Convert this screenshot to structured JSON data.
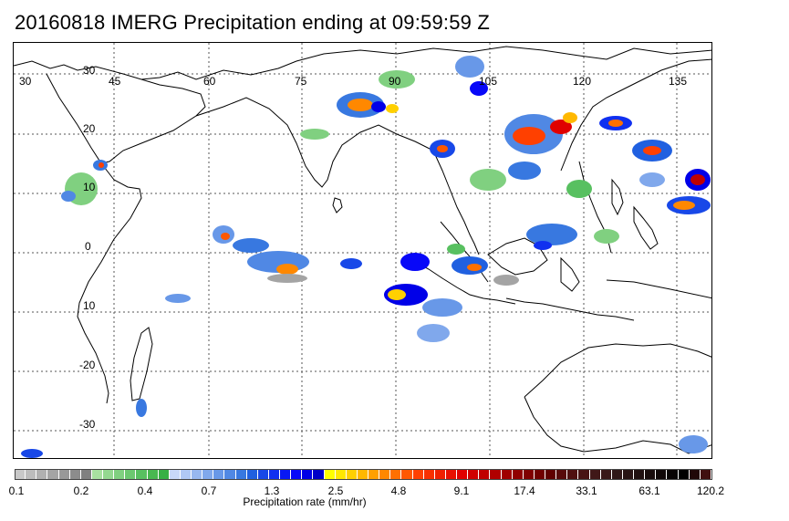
{
  "title": "20160818 IMERG Precipitation ending at 09:59:59 Z",
  "map": {
    "longitude_labels": [
      "30",
      "45",
      "60",
      "75",
      "90",
      "105",
      "120",
      "135"
    ],
    "latitude_labels": [
      "30",
      "20",
      "10",
      "0",
      "10",
      "-20",
      "-30"
    ]
  },
  "colorbar": {
    "title": "Precipitation rate (mm/hr)",
    "tick_labels": [
      "0.1",
      "0.2",
      "0.4",
      "0.7",
      "1.3",
      "2.5",
      "4.8",
      "9.1",
      "17.4",
      "33.1",
      "63.1",
      "120.2"
    ],
    "colors": [
      "#c8c8c8",
      "#bcbcbc",
      "#b0b0b0",
      "#a4a4a4",
      "#989898",
      "#8c8c8c",
      "#808080",
      "#a8e0a0",
      "#94d890",
      "#80d080",
      "#6cc870",
      "#58c060",
      "#48b850",
      "#38b044",
      "#c8d8f8",
      "#b0c8f4",
      "#98b8f0",
      "#80a8ec",
      "#6898e8",
      "#5088e4",
      "#3878e0",
      "#2060e0",
      "#1848e8",
      "#1030f0",
      "#0818f4",
      "#0808f8",
      "#0000e8",
      "#0000c8",
      "#ffff00",
      "#ffe800",
      "#ffd000",
      "#ffb800",
      "#ffa000",
      "#ff8800",
      "#ff7000",
      "#ff5800",
      "#ff4000",
      "#f83000",
      "#f02000",
      "#e81000",
      "#e00000",
      "#d00000",
      "#c00000",
      "#b00000",
      "#a00000",
      "#900000",
      "#800000",
      "#700000",
      "#600000",
      "#580a0a",
      "#501010",
      "#481414",
      "#401818",
      "#381818",
      "#301818",
      "#281414",
      "#201010",
      "#180c0c",
      "#100808",
      "#080404",
      "#000000",
      "#200808",
      "#401010"
    ]
  }
}
